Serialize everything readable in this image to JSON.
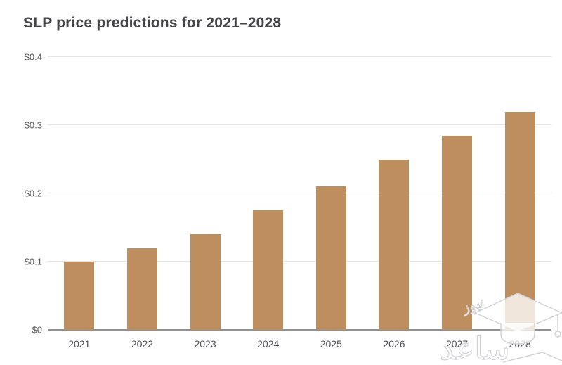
{
  "header": {
    "title": "SLP price predictions for 2021–2028"
  },
  "chart_data": {
    "type": "bar",
    "title": "SLP price predictions for 2021–2028",
    "categories": [
      "2021",
      "2022",
      "2023",
      "2024",
      "2025",
      "2026",
      "2027",
      "2028"
    ],
    "values": [
      0.1,
      0.12,
      0.14,
      0.175,
      0.21,
      0.25,
      0.285,
      0.32
    ],
    "xlabel": "",
    "ylabel": "",
    "ylim": [
      0,
      0.4
    ],
    "yticks": [
      {
        "label": "$0.4",
        "value": 0.4
      },
      {
        "label": "$0.3",
        "value": 0.3
      },
      {
        "label": "$0.2",
        "value": 0.2
      },
      {
        "label": "$0.1",
        "value": 0.1
      },
      {
        "label": "$0",
        "value": 0
      }
    ],
    "grid": true,
    "legend": false,
    "bar_color": "#bf8e5e",
    "gridline_color": "#e5e4e6",
    "axis_line_color": "#8f8f94",
    "title_color": "#454549",
    "tick_label_color": "#56565a"
  },
  "watermark": {
    "text_large": "ساعد",
    "text_small": "نیوز",
    "icon": "graduation-cap-icon",
    "color": "#d2d2d6"
  }
}
